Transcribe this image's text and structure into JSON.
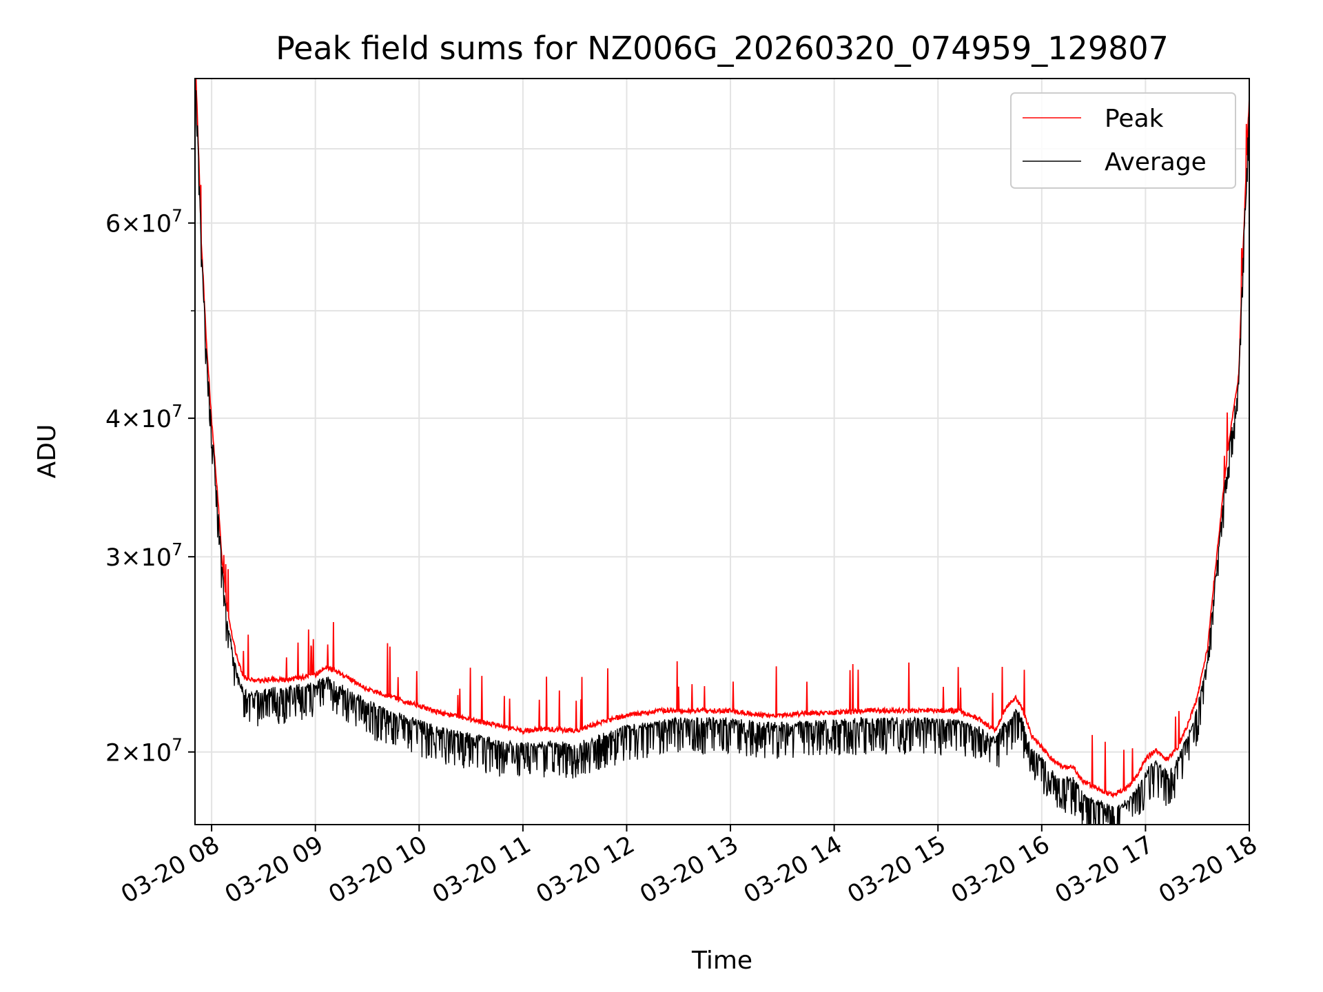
{
  "chart_data": {
    "type": "line",
    "title": "Peak field sums for NZ006G_20260320_074959_129807",
    "xlabel": "Time",
    "ylabel": "ADU",
    "yscale": "log",
    "xlim": [
      7.84,
      18.0
    ],
    "ylim": [
      17200000,
      81000000
    ],
    "grid": true,
    "legend_position": "top-right",
    "x_tick_values": [
      8,
      9,
      10,
      11,
      12,
      13,
      14,
      15,
      16,
      17,
      18
    ],
    "x_tick_labels": [
      "03-20 08",
      "03-20 09",
      "03-20 10",
      "03-20 11",
      "03-20 12",
      "03-20 13",
      "03-20 14",
      "03-20 15",
      "03-20 16",
      "03-20 17",
      "03-20 18"
    ],
    "y_major_ticks": [
      {
        "value": 20000000,
        "mantissa": "2",
        "base": "10",
        "exp": "7"
      },
      {
        "value": 30000000,
        "mantissa": "3",
        "base": "10",
        "exp": "7"
      },
      {
        "value": 40000000,
        "mantissa": "4",
        "base": "10",
        "exp": "7"
      },
      {
        "value": 60000000,
        "mantissa": "6",
        "base": "10",
        "exp": "7"
      }
    ],
    "y_minor_ticks": [
      50000000,
      70000000
    ],
    "x_unit": "hour of day on 03-20",
    "series": [
      {
        "name": "Peak",
        "color": "#ff0000",
        "x": [
          7.85,
          7.9,
          7.95,
          8.0,
          8.05,
          8.1,
          8.15,
          8.2,
          8.25,
          8.3,
          8.35,
          8.4,
          8.5,
          8.6,
          8.7,
          8.8,
          9.0,
          9.1,
          9.15,
          9.3,
          9.5,
          9.7,
          10.0,
          10.2,
          10.5,
          10.8,
          11.0,
          11.2,
          11.5,
          11.7,
          12.0,
          12.3,
          12.5,
          12.8,
          13.0,
          13.3,
          13.5,
          13.8,
          14.0,
          14.3,
          14.6,
          14.9,
          15.2,
          15.4,
          15.55,
          15.65,
          15.75,
          15.8,
          15.85,
          15.9,
          16.0,
          16.1,
          16.2,
          16.3,
          16.4,
          16.5,
          16.6,
          16.7,
          16.8,
          16.9,
          17.0,
          17.1,
          17.2,
          17.3,
          17.4,
          17.5,
          17.6,
          17.7,
          17.8,
          17.9,
          17.95,
          18.0
        ],
        "y": [
          81000000,
          58000000,
          47000000,
          40000000,
          35000000,
          30000000,
          27000000,
          25500000,
          24300000,
          23600000,
          23400000,
          23300000,
          23300000,
          23400000,
          23300000,
          23400000,
          23600000,
          24000000,
          23900000,
          23500000,
          22900000,
          22600000,
          22100000,
          21800000,
          21500000,
          21200000,
          21000000,
          21100000,
          21000000,
          21300000,
          21700000,
          21900000,
          21900000,
          21900000,
          21900000,
          21700000,
          21700000,
          21800000,
          21800000,
          21900000,
          21900000,
          21900000,
          21900000,
          21500000,
          21000000,
          22000000,
          22500000,
          22100000,
          21500000,
          20800000,
          20300000,
          19800000,
          19500000,
          19500000,
          18900000,
          18700000,
          18500000,
          18400000,
          18600000,
          19000000,
          19800000,
          20200000,
          19800000,
          20200000,
          21200000,
          22500000,
          25000000,
          31000000,
          38000000,
          44000000,
          60000000,
          78000000
        ]
      },
      {
        "name": "Average",
        "color": "#000000",
        "x": [
          7.85,
          7.9,
          7.95,
          8.0,
          8.05,
          8.1,
          8.15,
          8.2,
          8.25,
          8.3,
          8.35,
          8.4,
          8.5,
          8.6,
          8.7,
          8.8,
          9.0,
          9.1,
          9.15,
          9.3,
          9.5,
          9.7,
          10.0,
          10.2,
          10.5,
          10.8,
          11.0,
          11.2,
          11.5,
          11.7,
          12.0,
          12.3,
          12.5,
          12.8,
          13.0,
          13.3,
          13.5,
          13.8,
          14.0,
          14.3,
          14.6,
          14.9,
          15.2,
          15.4,
          15.55,
          15.65,
          15.75,
          15.8,
          15.85,
          15.9,
          16.0,
          16.1,
          16.2,
          16.3,
          16.4,
          16.5,
          16.6,
          16.7,
          16.8,
          16.9,
          17.0,
          17.1,
          17.2,
          17.3,
          17.4,
          17.5,
          17.6,
          17.7,
          17.8,
          17.9,
          17.95,
          18.0
        ],
        "y": [
          80000000,
          57500000,
          46500000,
          39500000,
          34500000,
          29500000,
          26500000,
          24800000,
          23500000,
          22900000,
          22700000,
          22700000,
          22800000,
          22900000,
          22900000,
          23000000,
          23200000,
          23500000,
          23400000,
          22900000,
          22300000,
          21900000,
          21400000,
          21100000,
          20800000,
          20500000,
          20400000,
          20500000,
          20400000,
          20700000,
          21200000,
          21400000,
          21500000,
          21500000,
          21500000,
          21300000,
          21300000,
          21400000,
          21400000,
          21500000,
          21500000,
          21500000,
          21400000,
          21100000,
          20600000,
          21400000,
          21900000,
          21700000,
          21000000,
          20300000,
          19800000,
          19300000,
          19000000,
          19000000,
          18400000,
          18200000,
          18000000,
          17900000,
          18100000,
          18500000,
          19300000,
          19700000,
          19300000,
          19700000,
          20700000,
          22000000,
          24500000,
          30500000,
          37500000,
          43500000,
          59500000,
          77000000
        ]
      }
    ]
  }
}
